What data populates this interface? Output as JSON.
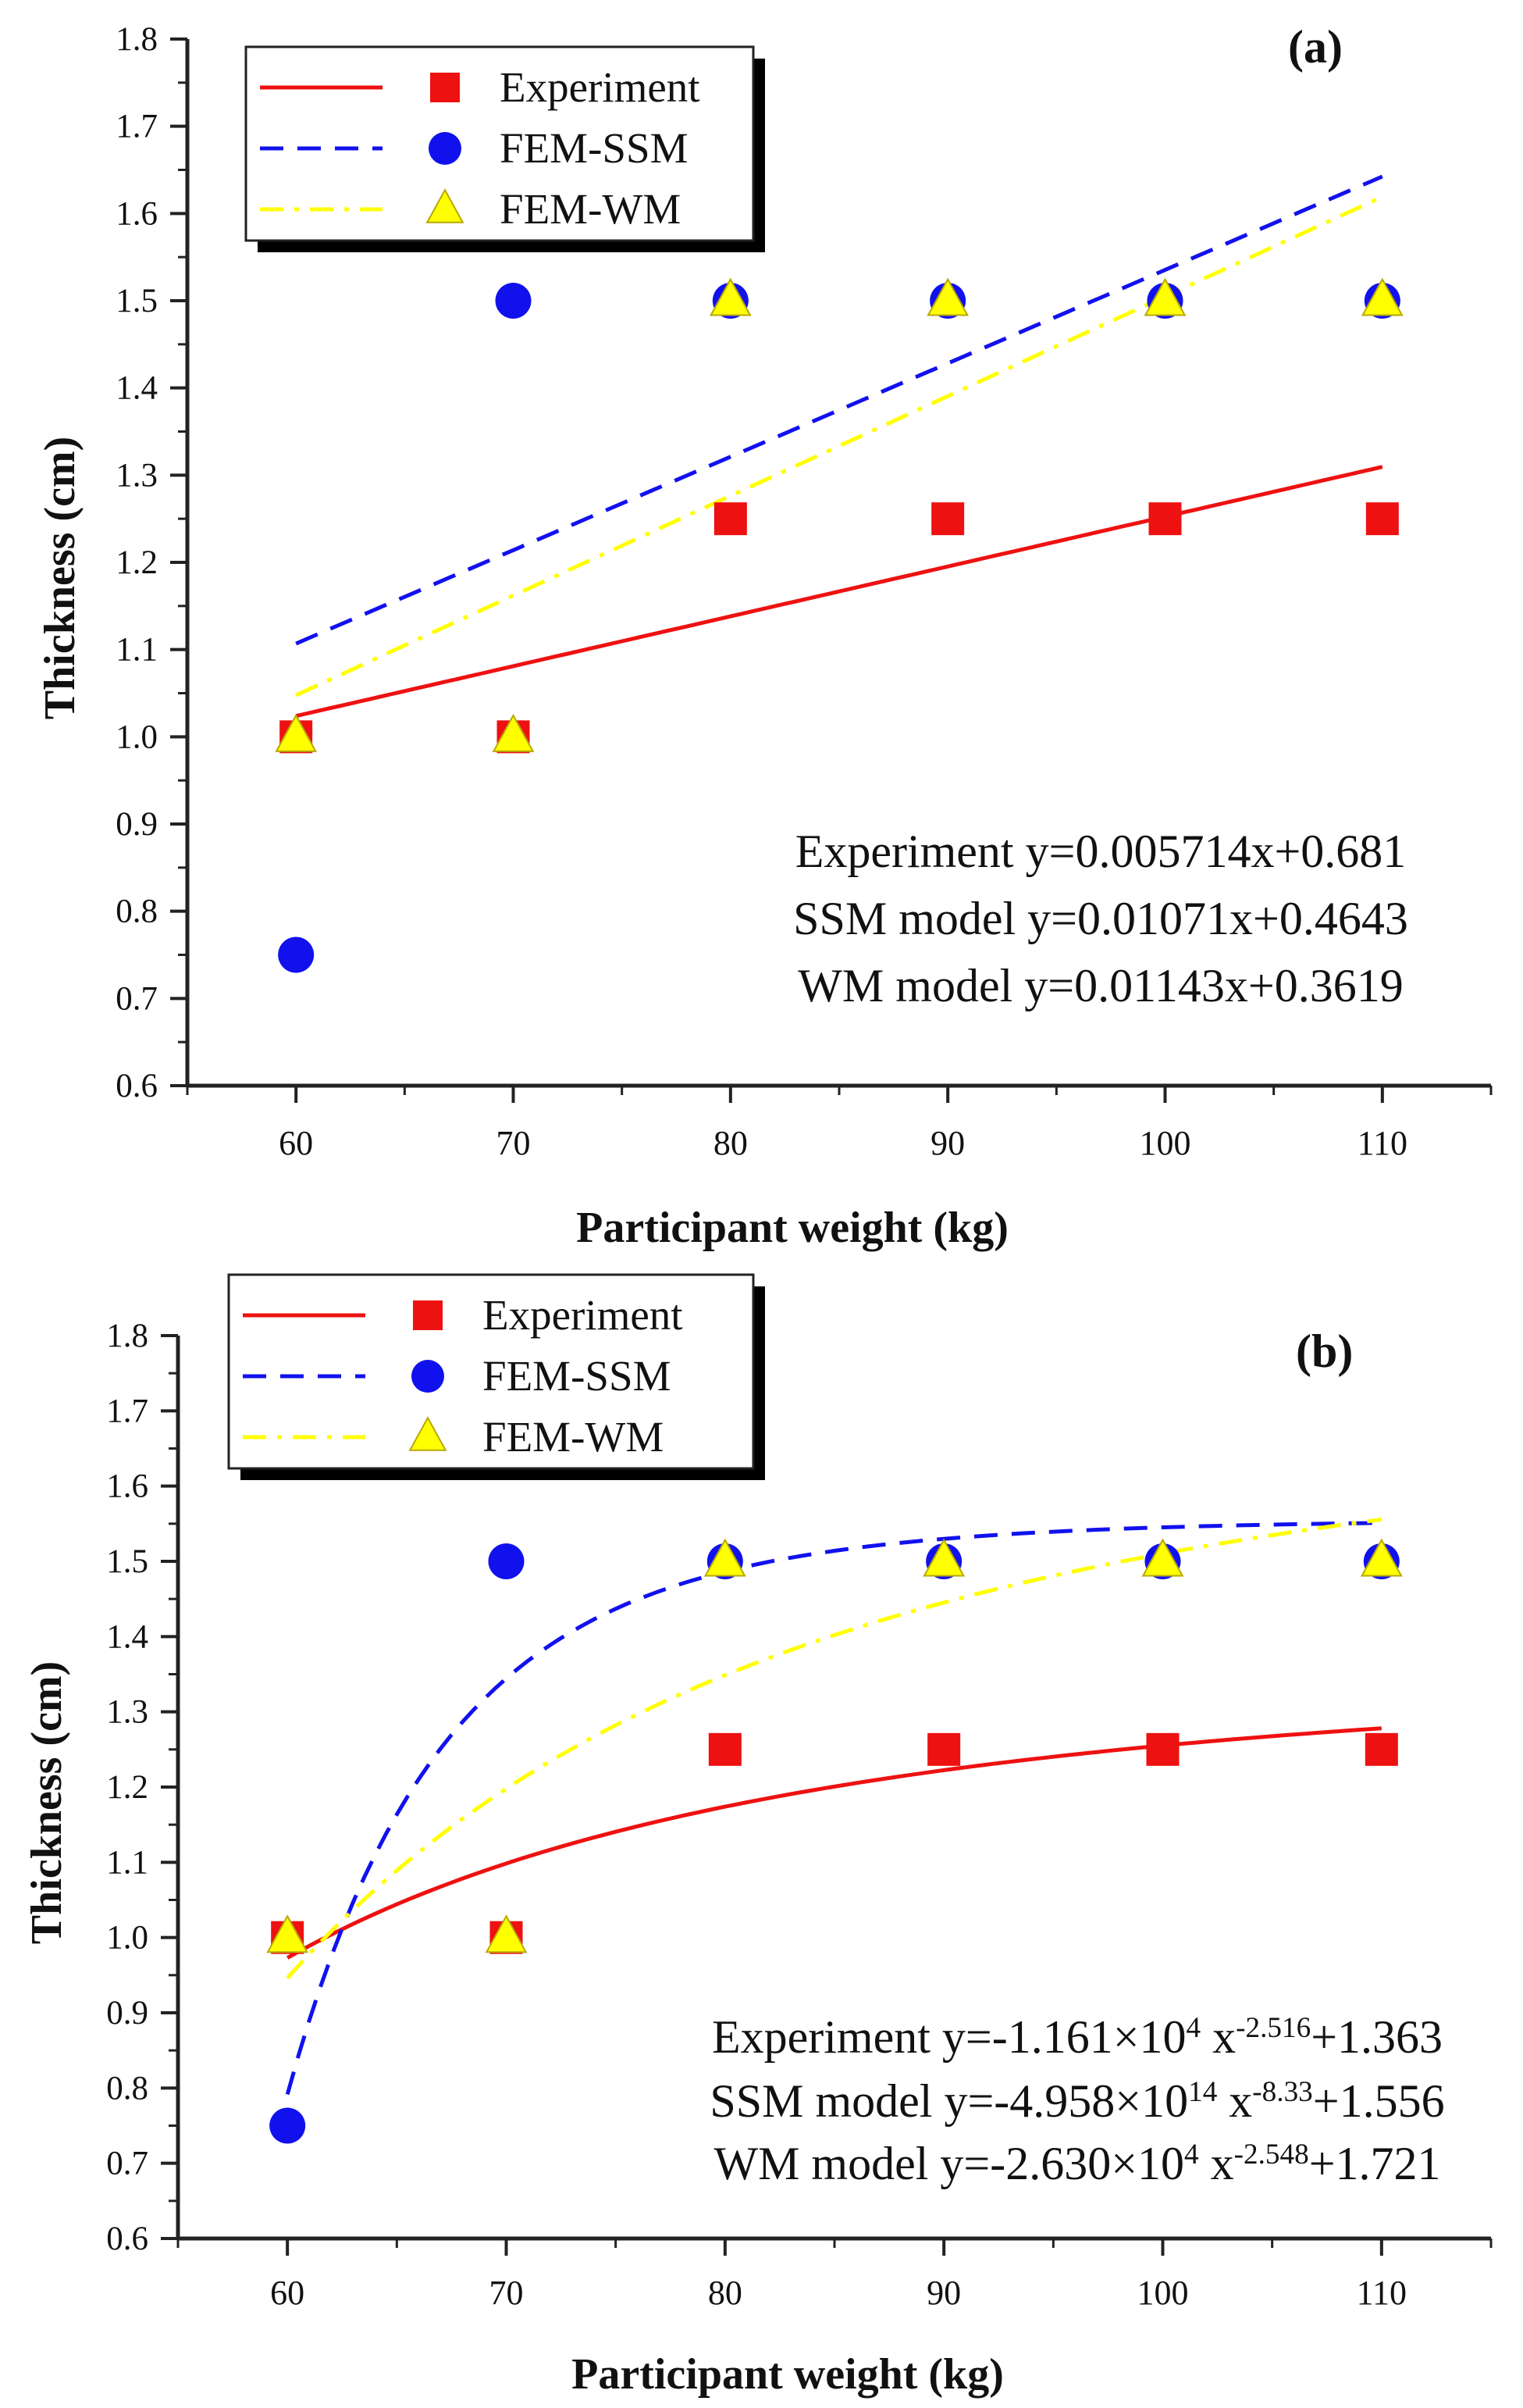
{
  "chart_data": [
    {
      "type": "scatter",
      "panel_label": "(a)",
      "title": "",
      "xlabel": "Participant weight (kg)",
      "ylabel": "Thickness (cm)",
      "xlim": [
        55,
        115
      ],
      "ylim": [
        0.6,
        1.8
      ],
      "x_ticks": [
        "60",
        "70",
        "80",
        "90",
        "100",
        "110"
      ],
      "y_ticks": [
        "0.6",
        "0.7",
        "0.8",
        "0.9",
        "1.0",
        "1.1",
        "1.2",
        "1.3",
        "1.4",
        "1.5",
        "1.6",
        "1.7",
        "1.8"
      ],
      "x": [
        60,
        70,
        80,
        90,
        100,
        110
      ],
      "series": [
        {
          "name": "Experiment",
          "marker": "square",
          "color": "#ee1111",
          "line": "solid",
          "values": [
            1.0,
            1.0,
            1.25,
            1.25,
            1.25,
            1.25
          ],
          "fit": {
            "kind": "linear",
            "a": 0.005714,
            "b": 0.681
          }
        },
        {
          "name": "FEM-SSM",
          "marker": "circle",
          "color": "#1111ee",
          "line": "dash",
          "values": [
            0.75,
            1.5,
            1.5,
            1.5,
            1.5,
            1.5
          ],
          "fit": {
            "kind": "linear",
            "a": 0.01071,
            "b": 0.4643
          }
        },
        {
          "name": "FEM-WM",
          "marker": "triangle",
          "color": "#ffff00",
          "line": "dashdot",
          "values": [
            1.0,
            1.0,
            1.5,
            1.5,
            1.5,
            1.5
          ],
          "fit": {
            "kind": "linear",
            "a": 0.01143,
            "b": 0.3619
          }
        }
      ],
      "equations": [
        {
          "lead": "Experiment  y=0.005714x+0.681"
        },
        {
          "lead": "SSM model y=0.01071x+0.4643"
        },
        {
          "lead": "WM model y=0.01143x+0.3619"
        }
      ]
    },
    {
      "type": "scatter",
      "panel_label": "(b)",
      "title": "",
      "xlabel": "Participant weight (kg)",
      "ylabel": "Thickness (cm)",
      "xlim": [
        55,
        115
      ],
      "ylim": [
        0.6,
        1.8
      ],
      "x_ticks": [
        "60",
        "70",
        "80",
        "90",
        "100",
        "110"
      ],
      "y_ticks": [
        "0.6",
        "0.7",
        "0.8",
        "0.9",
        "1.0",
        "1.1",
        "1.2",
        "1.3",
        "1.4",
        "1.5",
        "1.6",
        "1.7",
        "1.8"
      ],
      "x": [
        60,
        70,
        80,
        90,
        100,
        110
      ],
      "series": [
        {
          "name": "Experiment",
          "marker": "square",
          "color": "#ee1111",
          "line": "solid",
          "values": [
            1.0,
            1.0,
            1.25,
            1.25,
            1.25,
            1.25
          ],
          "fit": {
            "kind": "power",
            "a": -11610,
            "p": -2.516,
            "c": 1.363
          }
        },
        {
          "name": "FEM-SSM",
          "marker": "circle",
          "color": "#1111ee",
          "line": "dash",
          "values": [
            0.75,
            1.5,
            1.5,
            1.5,
            1.5,
            1.5
          ],
          "fit": {
            "kind": "power",
            "a": -495800000000000.0,
            "p": -8.33,
            "c": 1.556
          }
        },
        {
          "name": "FEM-WM",
          "marker": "triangle",
          "color": "#ffff00",
          "line": "dashdot",
          "values": [
            1.0,
            1.0,
            1.5,
            1.5,
            1.5,
            1.5
          ],
          "fit": {
            "kind": "power",
            "a": -26300,
            "p": -2.548,
            "c": 1.721
          }
        }
      ],
      "equations": [
        {
          "lead": "Experiment y=-1.161×10",
          "sup1": "4",
          "mid": " x",
          "sup2": "-2.516",
          "tail": "+1.363"
        },
        {
          "lead": "SSM model y=-4.958×10",
          "sup1": "14",
          "mid": " x",
          "sup2": "-8.33",
          "tail": "+1.556"
        },
        {
          "lead": "WM model y=-2.630×10",
          "sup1": "4",
          "mid": "  x",
          "sup2": "-2.548",
          "tail": "+1.721"
        }
      ]
    }
  ]
}
